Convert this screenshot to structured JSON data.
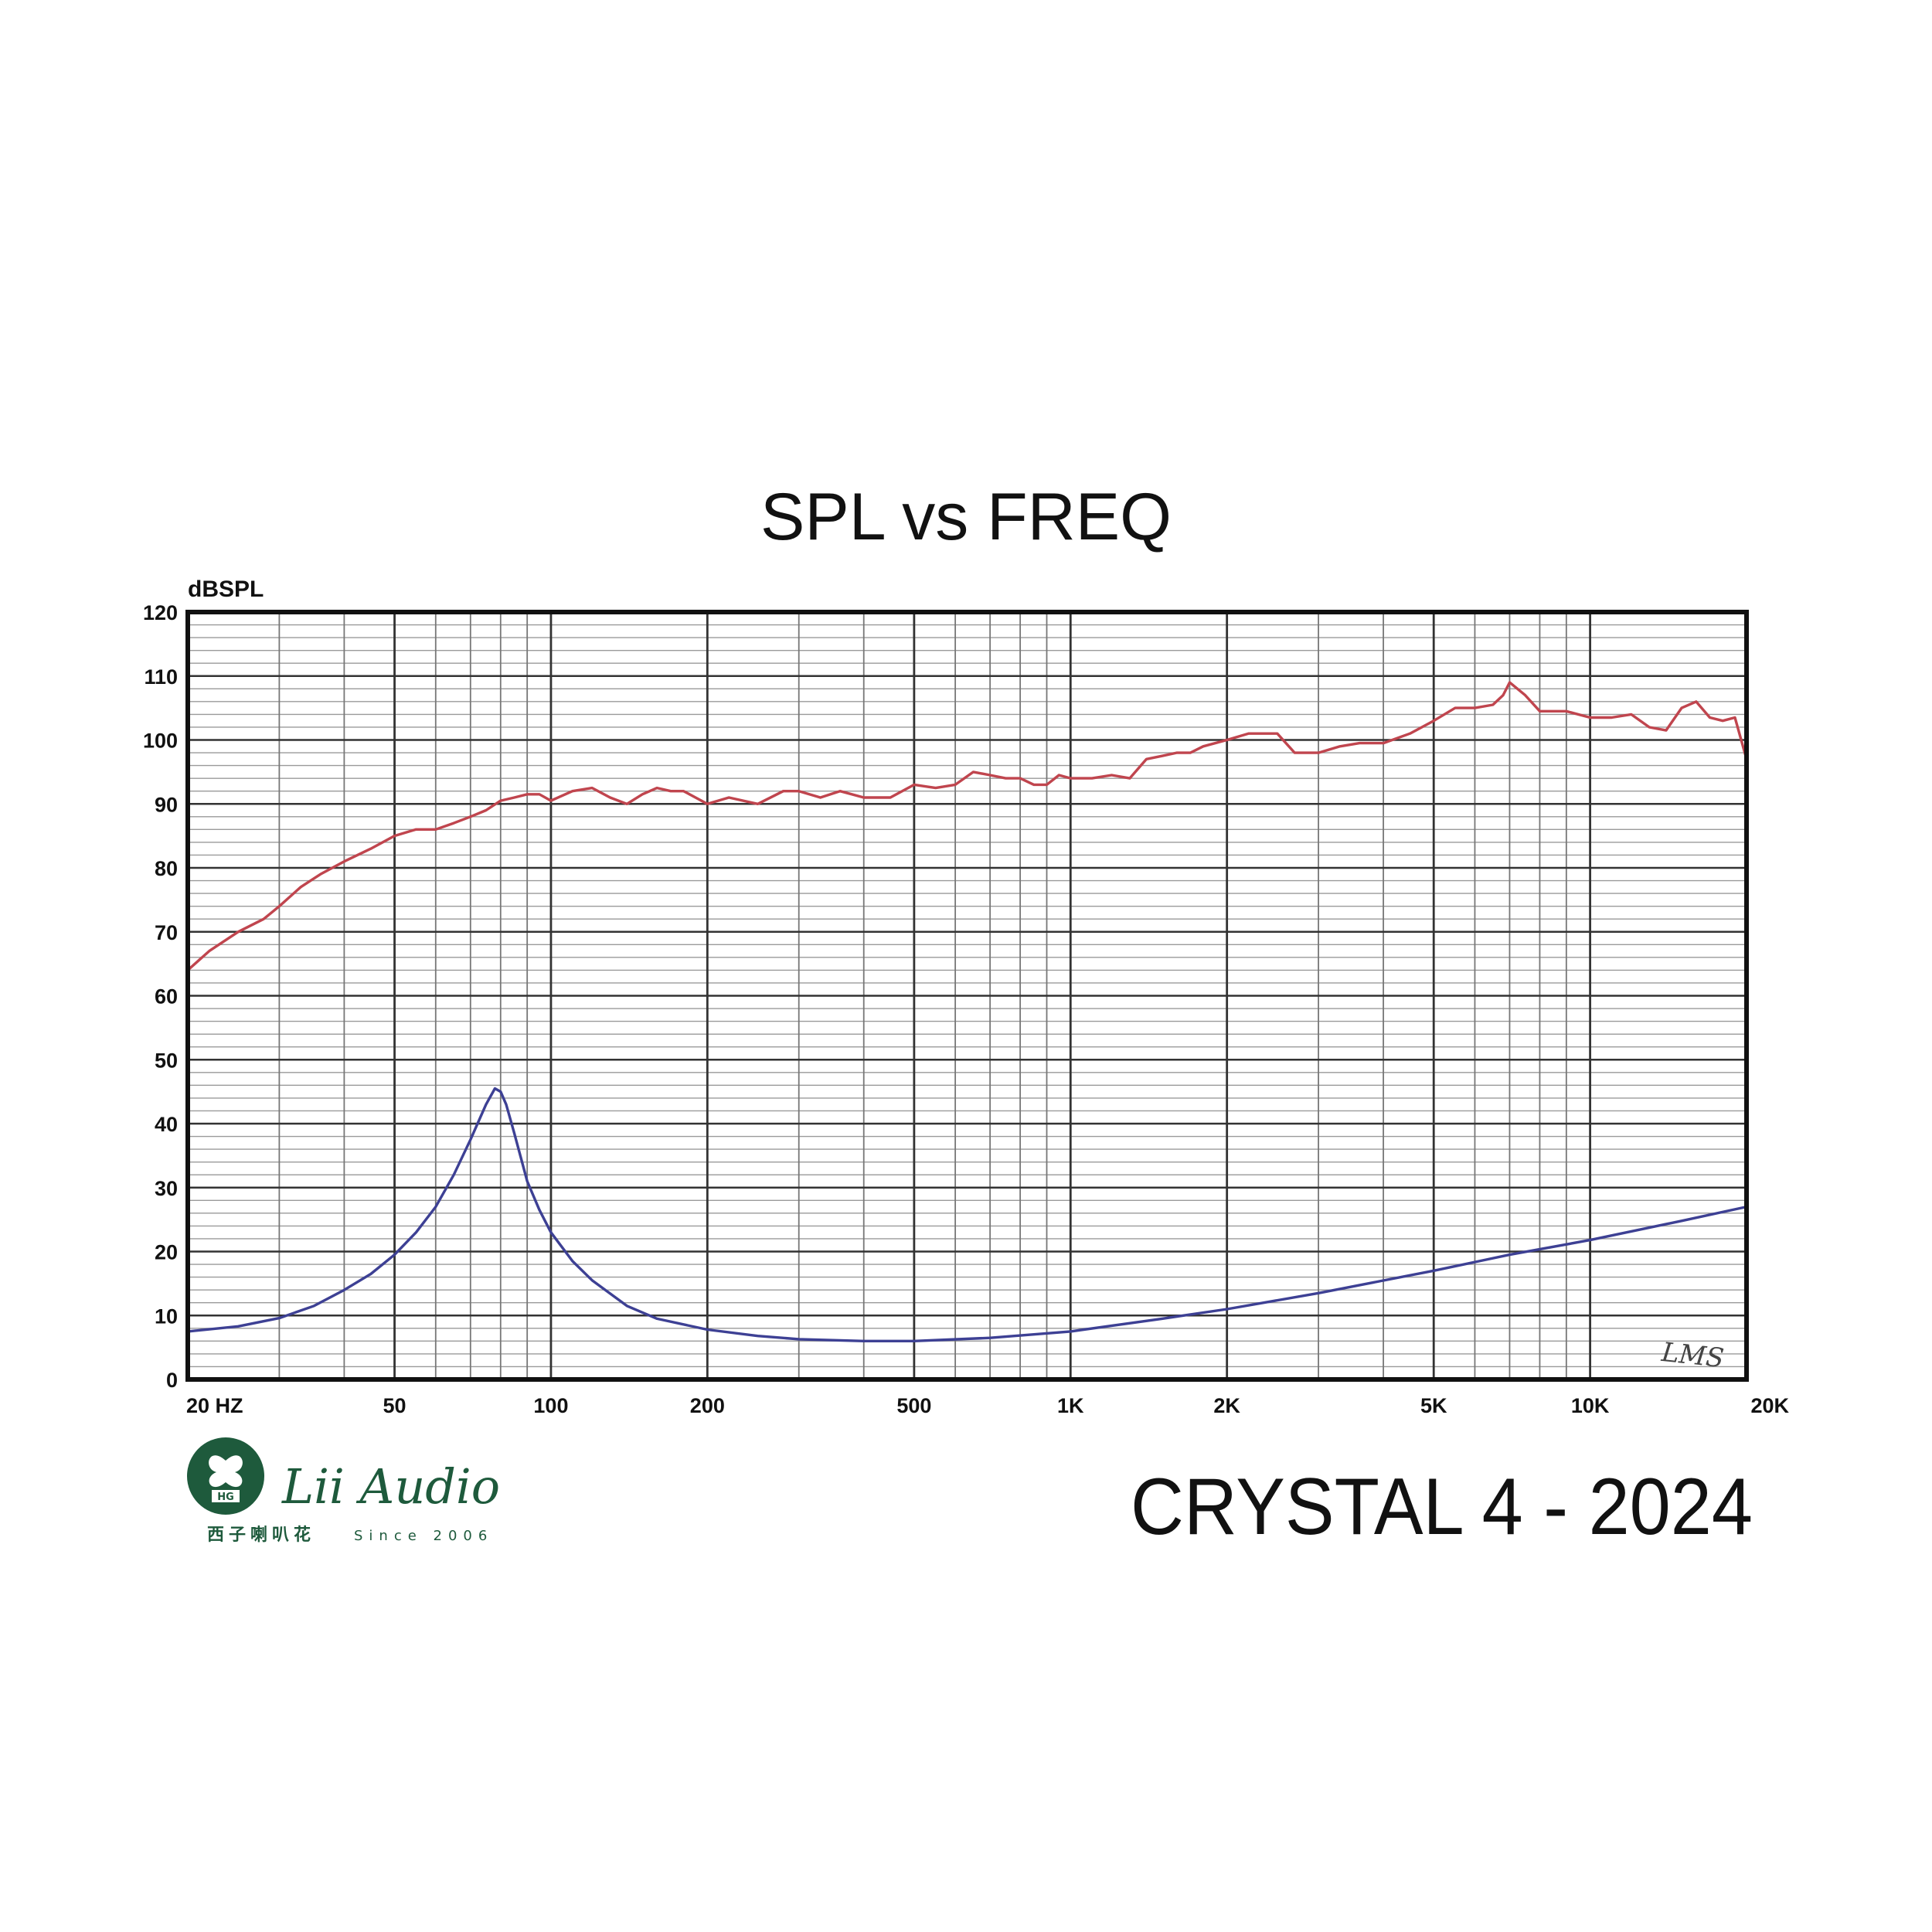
{
  "chart_data": {
    "type": "line",
    "title": "SPL vs FREQ",
    "ylabel": "dBSPL",
    "xlabel": "",
    "x_scale": "log",
    "xlim": [
      20,
      20000
    ],
    "ylim": [
      0,
      120
    ],
    "grid": true,
    "y_ticks": [
      "0",
      "10",
      "20",
      "30",
      "40",
      "50",
      "60",
      "70",
      "80",
      "90",
      "100",
      "110",
      "120"
    ],
    "x_ticks": [
      {
        "value": 20,
        "label": "20 HZ"
      },
      {
        "value": 50,
        "label": "50"
      },
      {
        "value": 100,
        "label": "100"
      },
      {
        "value": 200,
        "label": "200"
      },
      {
        "value": 500,
        "label": "500"
      },
      {
        "value": 1000,
        "label": "1K"
      },
      {
        "value": 2000,
        "label": "2K"
      },
      {
        "value": 5000,
        "label": "5K"
      },
      {
        "value": 10000,
        "label": "10K"
      },
      {
        "value": 20000,
        "label": "20K"
      }
    ],
    "series": [
      {
        "color": "#c0454e",
        "x": [
          20,
          22,
          25,
          28,
          30,
          33,
          36,
          40,
          45,
          50,
          55,
          60,
          65,
          70,
          75,
          80,
          85,
          90,
          95,
          100,
          110,
          120,
          130,
          140,
          150,
          160,
          170,
          180,
          200,
          220,
          250,
          280,
          300,
          330,
          360,
          400,
          450,
          500,
          550,
          600,
          650,
          700,
          750,
          800,
          850,
          900,
          950,
          1000,
          1100,
          1200,
          1300,
          1400,
          1500,
          1600,
          1700,
          1800,
          2000,
          2200,
          2500,
          2700,
          3000,
          3300,
          3600,
          4000,
          4500,
          5000,
          5500,
          6000,
          6500,
          6800,
          7000,
          7500,
          8000,
          9000,
          10000,
          11000,
          12000,
          13000,
          14000,
          15000,
          16000,
          17000,
          18000,
          19000,
          20000
        ],
        "y": [
          64,
          67,
          70,
          72,
          74,
          77,
          79,
          81,
          83,
          85,
          86,
          86,
          87,
          88,
          89,
          90.5,
          91,
          91.5,
          91.5,
          90.5,
          92,
          92.5,
          91,
          90,
          91.5,
          92.5,
          92,
          92,
          90,
          91,
          90,
          92,
          92,
          91,
          92,
          91,
          91,
          93,
          92.5,
          93,
          95,
          94.5,
          94,
          94,
          93,
          93,
          94.5,
          94,
          94,
          94.5,
          94,
          97,
          97.5,
          98,
          98,
          99,
          100,
          101,
          101,
          98,
          98,
          99,
          99.5,
          99.5,
          101,
          103,
          105,
          105,
          105.5,
          107,
          109,
          107,
          104.5,
          104.5,
          103.5,
          103.5,
          104,
          102,
          101.5,
          105,
          106,
          103.5,
          103,
          103.5,
          97
        ]
      },
      {
        "color": "#3d4094",
        "x": [
          20,
          25,
          30,
          35,
          40,
          45,
          50,
          55,
          60,
          65,
          70,
          75,
          78,
          80,
          82,
          85,
          90,
          95,
          100,
          110,
          120,
          140,
          160,
          200,
          250,
          300,
          400,
          500,
          700,
          1000,
          1500,
          2000,
          3000,
          5000,
          7000,
          10000,
          15000,
          20000
        ],
        "y": [
          7.5,
          8.3,
          9.6,
          11.5,
          14,
          16.5,
          19.5,
          23,
          27,
          32,
          37.5,
          43,
          45.5,
          45,
          43,
          38.5,
          31,
          26.5,
          23,
          18.5,
          15.5,
          11.5,
          9.5,
          7.8,
          6.8,
          6.3,
          6,
          6,
          6.5,
          7.5,
          9.5,
          11,
          13.5,
          17,
          19.5,
          21.8,
          24.8,
          27
        ]
      }
    ]
  },
  "model": "CRYSTAL 4 - 2024",
  "brand": {
    "name": "Lii Audio",
    "chinese": "西子喇叭花",
    "since": "Since 2006",
    "icon_text": "HG"
  },
  "watermark": "LMS",
  "colors": {
    "spl_curve": "#c0454e",
    "impedance_curve": "#3d4094",
    "brand_green": "#1e5a3c",
    "grid": "#555555"
  }
}
